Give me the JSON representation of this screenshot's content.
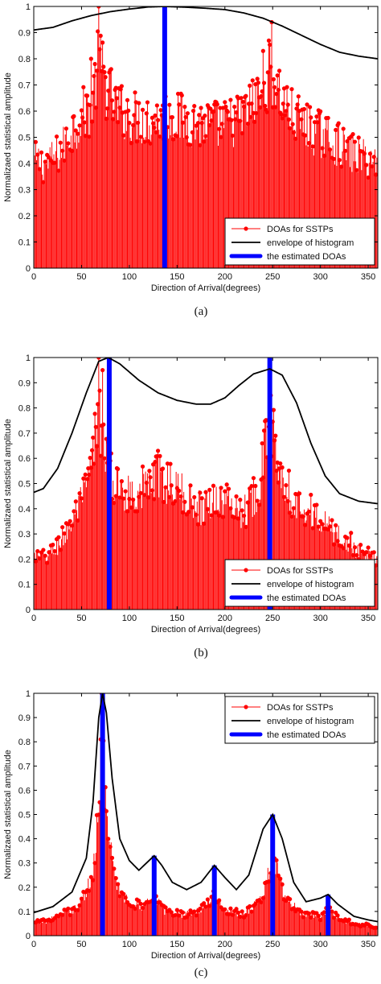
{
  "colors": {
    "stem": "#ff0000",
    "envelope": "#000000",
    "estimate": "#0000ff",
    "axes": "#000000"
  },
  "chart_data": [
    {
      "type": "line",
      "caption": "(a)",
      "xlabel": "Direction of Arrival(degrees)",
      "ylabel": "Normalizaed statistical amplitude",
      "xlim": [
        0,
        360
      ],
      "ylim": [
        0,
        1
      ],
      "xticks": [
        "0",
        "50",
        "100",
        "150",
        "200",
        "250",
        "300",
        "350"
      ],
      "yticks": [
        "0",
        "0.1",
        "0.2",
        "0.3",
        "0.4",
        "0.5",
        "0.6",
        "0.7",
        "0.8",
        "0.9",
        "1"
      ],
      "legend_position": "bottom-right",
      "legend": [
        "DOAs for SSTPs",
        "envelope of histogram",
        "the estimated DOAs"
      ],
      "histogram_envelope_points": [
        [
          0,
          0.47
        ],
        [
          10,
          0.45
        ],
        [
          20,
          0.47
        ],
        [
          30,
          0.52
        ],
        [
          40,
          0.6
        ],
        [
          50,
          0.66
        ],
        [
          60,
          0.7
        ],
        [
          68,
          0.9
        ],
        [
          75,
          0.8
        ],
        [
          85,
          0.7
        ],
        [
          100,
          0.66
        ],
        [
          120,
          0.64
        ],
        [
          140,
          0.66
        ],
        [
          160,
          0.64
        ],
        [
          180,
          0.62
        ],
        [
          200,
          0.62
        ],
        [
          220,
          0.66
        ],
        [
          235,
          0.74
        ],
        [
          248,
          0.86
        ],
        [
          258,
          0.74
        ],
        [
          270,
          0.66
        ],
        [
          290,
          0.6
        ],
        [
          310,
          0.56
        ],
        [
          330,
          0.5
        ],
        [
          345,
          0.48
        ],
        [
          360,
          0.46
        ]
      ],
      "histogram_peaks": [
        [
          68,
          1.0
        ],
        [
          249,
          0.94
        ],
        [
          60,
          0.8
        ],
        [
          240,
          0.83
        ]
      ],
      "envelope": [
        [
          0,
          0.91
        ],
        [
          20,
          0.92
        ],
        [
          40,
          0.945
        ],
        [
          60,
          0.965
        ],
        [
          80,
          0.98
        ],
        [
          100,
          0.99
        ],
        [
          120,
          0.998
        ],
        [
          137,
          1.0
        ],
        [
          160,
          0.997
        ],
        [
          180,
          0.993
        ],
        [
          200,
          0.988
        ],
        [
          220,
          0.975
        ],
        [
          240,
          0.955
        ],
        [
          260,
          0.925
        ],
        [
          280,
          0.89
        ],
        [
          300,
          0.855
        ],
        [
          320,
          0.825
        ],
        [
          340,
          0.81
        ],
        [
          360,
          0.8
        ]
      ],
      "estimated_doas": [
        137
      ]
    },
    {
      "type": "line",
      "caption": "(b)",
      "xlabel": "Direction of Arrival(degrees)",
      "ylabel": "Normalizaed statistical amplitude",
      "xlim": [
        0,
        360
      ],
      "ylim": [
        0,
        1
      ],
      "xticks": [
        "0",
        "50",
        "100",
        "150",
        "200",
        "250",
        "300",
        "350"
      ],
      "yticks": [
        "0",
        "0.1",
        "0.2",
        "0.3",
        "0.4",
        "0.5",
        "0.6",
        "0.7",
        "0.8",
        "0.9",
        "1"
      ],
      "legend_position": "bottom-right",
      "legend": [
        "DOAs for SSTPs",
        "envelope of histogram",
        "the estimated DOAs"
      ],
      "histogram_envelope_points": [
        [
          0,
          0.24
        ],
        [
          10,
          0.23
        ],
        [
          20,
          0.26
        ],
        [
          30,
          0.32
        ],
        [
          40,
          0.4
        ],
        [
          50,
          0.48
        ],
        [
          60,
          0.62
        ],
        [
          68,
          0.9
        ],
        [
          75,
          0.7
        ],
        [
          85,
          0.55
        ],
        [
          100,
          0.52
        ],
        [
          115,
          0.55
        ],
        [
          130,
          0.6
        ],
        [
          145,
          0.56
        ],
        [
          160,
          0.5
        ],
        [
          175,
          0.46
        ],
        [
          190,
          0.5
        ],
        [
          205,
          0.48
        ],
        [
          220,
          0.44
        ],
        [
          235,
          0.55
        ],
        [
          247,
          0.84
        ],
        [
          258,
          0.66
        ],
        [
          270,
          0.5
        ],
        [
          290,
          0.44
        ],
        [
          310,
          0.36
        ],
        [
          330,
          0.3
        ],
        [
          345,
          0.25
        ],
        [
          360,
          0.22
        ]
      ],
      "histogram_peaks": [
        [
          68,
          1.0
        ],
        [
          248,
          0.85
        ],
        [
          130,
          0.63
        ],
        [
          72,
          0.95
        ]
      ],
      "envelope": [
        [
          0,
          0.465
        ],
        [
          10,
          0.48
        ],
        [
          25,
          0.56
        ],
        [
          40,
          0.7
        ],
        [
          55,
          0.86
        ],
        [
          68,
          0.985
        ],
        [
          78,
          1.0
        ],
        [
          90,
          0.975
        ],
        [
          110,
          0.91
        ],
        [
          130,
          0.86
        ],
        [
          150,
          0.83
        ],
        [
          170,
          0.815
        ],
        [
          185,
          0.815
        ],
        [
          200,
          0.84
        ],
        [
          215,
          0.89
        ],
        [
          230,
          0.935
        ],
        [
          247,
          0.955
        ],
        [
          260,
          0.93
        ],
        [
          275,
          0.82
        ],
        [
          290,
          0.66
        ],
        [
          305,
          0.53
        ],
        [
          320,
          0.46
        ],
        [
          340,
          0.43
        ],
        [
          360,
          0.42
        ]
      ],
      "estimated_doas": [
        79,
        247
      ]
    },
    {
      "type": "line",
      "caption": "(c)",
      "xlabel": "Direction of Arrival(degrees)",
      "ylabel": "Normalizaed statistical amplitude",
      "xlim": [
        0,
        360
      ],
      "ylim": [
        0,
        1
      ],
      "xticks": [
        "0",
        "50",
        "100",
        "150",
        "200",
        "250",
        "300",
        "350"
      ],
      "yticks": [
        "0",
        "0.1",
        "0.2",
        "0.3",
        "0.4",
        "0.5",
        "0.6",
        "0.7",
        "0.8",
        "0.9",
        "1"
      ],
      "legend_position": "top-right",
      "legend": [
        "DOAs for SSTPs",
        "envelope of histogram",
        "the estimated DOAs"
      ],
      "histogram_envelope_points": [
        [
          0,
          0.06
        ],
        [
          15,
          0.07
        ],
        [
          30,
          0.1
        ],
        [
          45,
          0.13
        ],
        [
          55,
          0.2
        ],
        [
          62,
          0.3
        ],
        [
          67,
          0.55
        ],
        [
          71,
          0.96
        ],
        [
          76,
          0.55
        ],
        [
          85,
          0.25
        ],
        [
          100,
          0.15
        ],
        [
          115,
          0.14
        ],
        [
          125,
          0.2
        ],
        [
          135,
          0.12
        ],
        [
          155,
          0.1
        ],
        [
          175,
          0.12
        ],
        [
          188,
          0.18
        ],
        [
          200,
          0.12
        ],
        [
          220,
          0.1
        ],
        [
          240,
          0.18
        ],
        [
          250,
          0.38
        ],
        [
          262,
          0.18
        ],
        [
          280,
          0.1
        ],
        [
          300,
          0.09
        ],
        [
          308,
          0.12
        ],
        [
          325,
          0.07
        ],
        [
          345,
          0.05
        ],
        [
          360,
          0.04
        ]
      ],
      "histogram_peaks": [
        [
          71,
          1.0
        ],
        [
          72,
          0.93
        ],
        [
          250,
          0.4
        ],
        [
          70,
          0.81
        ]
      ],
      "envelope": [
        [
          0,
          0.095
        ],
        [
          20,
          0.12
        ],
        [
          40,
          0.18
        ],
        [
          55,
          0.32
        ],
        [
          62,
          0.55
        ],
        [
          68,
          0.9
        ],
        [
          72,
          1.0
        ],
        [
          76,
          0.92
        ],
        [
          82,
          0.65
        ],
        [
          90,
          0.4
        ],
        [
          100,
          0.31
        ],
        [
          110,
          0.27
        ],
        [
          118,
          0.3
        ],
        [
          126,
          0.33
        ],
        [
          134,
          0.29
        ],
        [
          145,
          0.22
        ],
        [
          160,
          0.19
        ],
        [
          175,
          0.22
        ],
        [
          189,
          0.29
        ],
        [
          200,
          0.24
        ],
        [
          212,
          0.19
        ],
        [
          225,
          0.25
        ],
        [
          240,
          0.44
        ],
        [
          250,
          0.5
        ],
        [
          260,
          0.4
        ],
        [
          272,
          0.22
        ],
        [
          285,
          0.14
        ],
        [
          300,
          0.155
        ],
        [
          308,
          0.17
        ],
        [
          318,
          0.13
        ],
        [
          335,
          0.08
        ],
        [
          350,
          0.065
        ],
        [
          360,
          0.058
        ]
      ],
      "estimated_doas": [
        72,
        126,
        189,
        250,
        308
      ],
      "estimated_doa_heights": [
        1.0,
        0.33,
        0.29,
        0.5,
        0.17
      ]
    }
  ]
}
